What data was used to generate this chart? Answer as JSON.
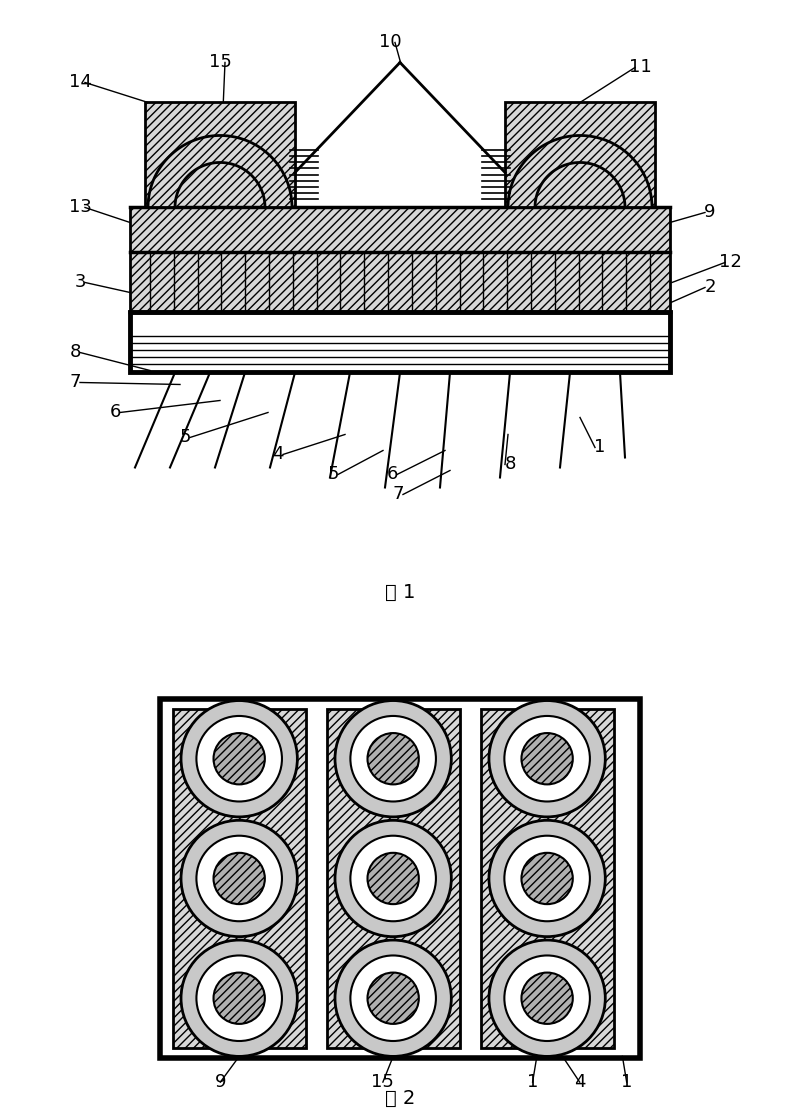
{
  "fig_width": 8.0,
  "fig_height": 11.12,
  "bg_color": "#ffffff",
  "label_fs": 13,
  "fig1_caption": "图 1",
  "fig2_caption": "图 2",
  "hatch": "////",
  "gray": "#d8d8d8",
  "darkgray": "#b0b0b0"
}
